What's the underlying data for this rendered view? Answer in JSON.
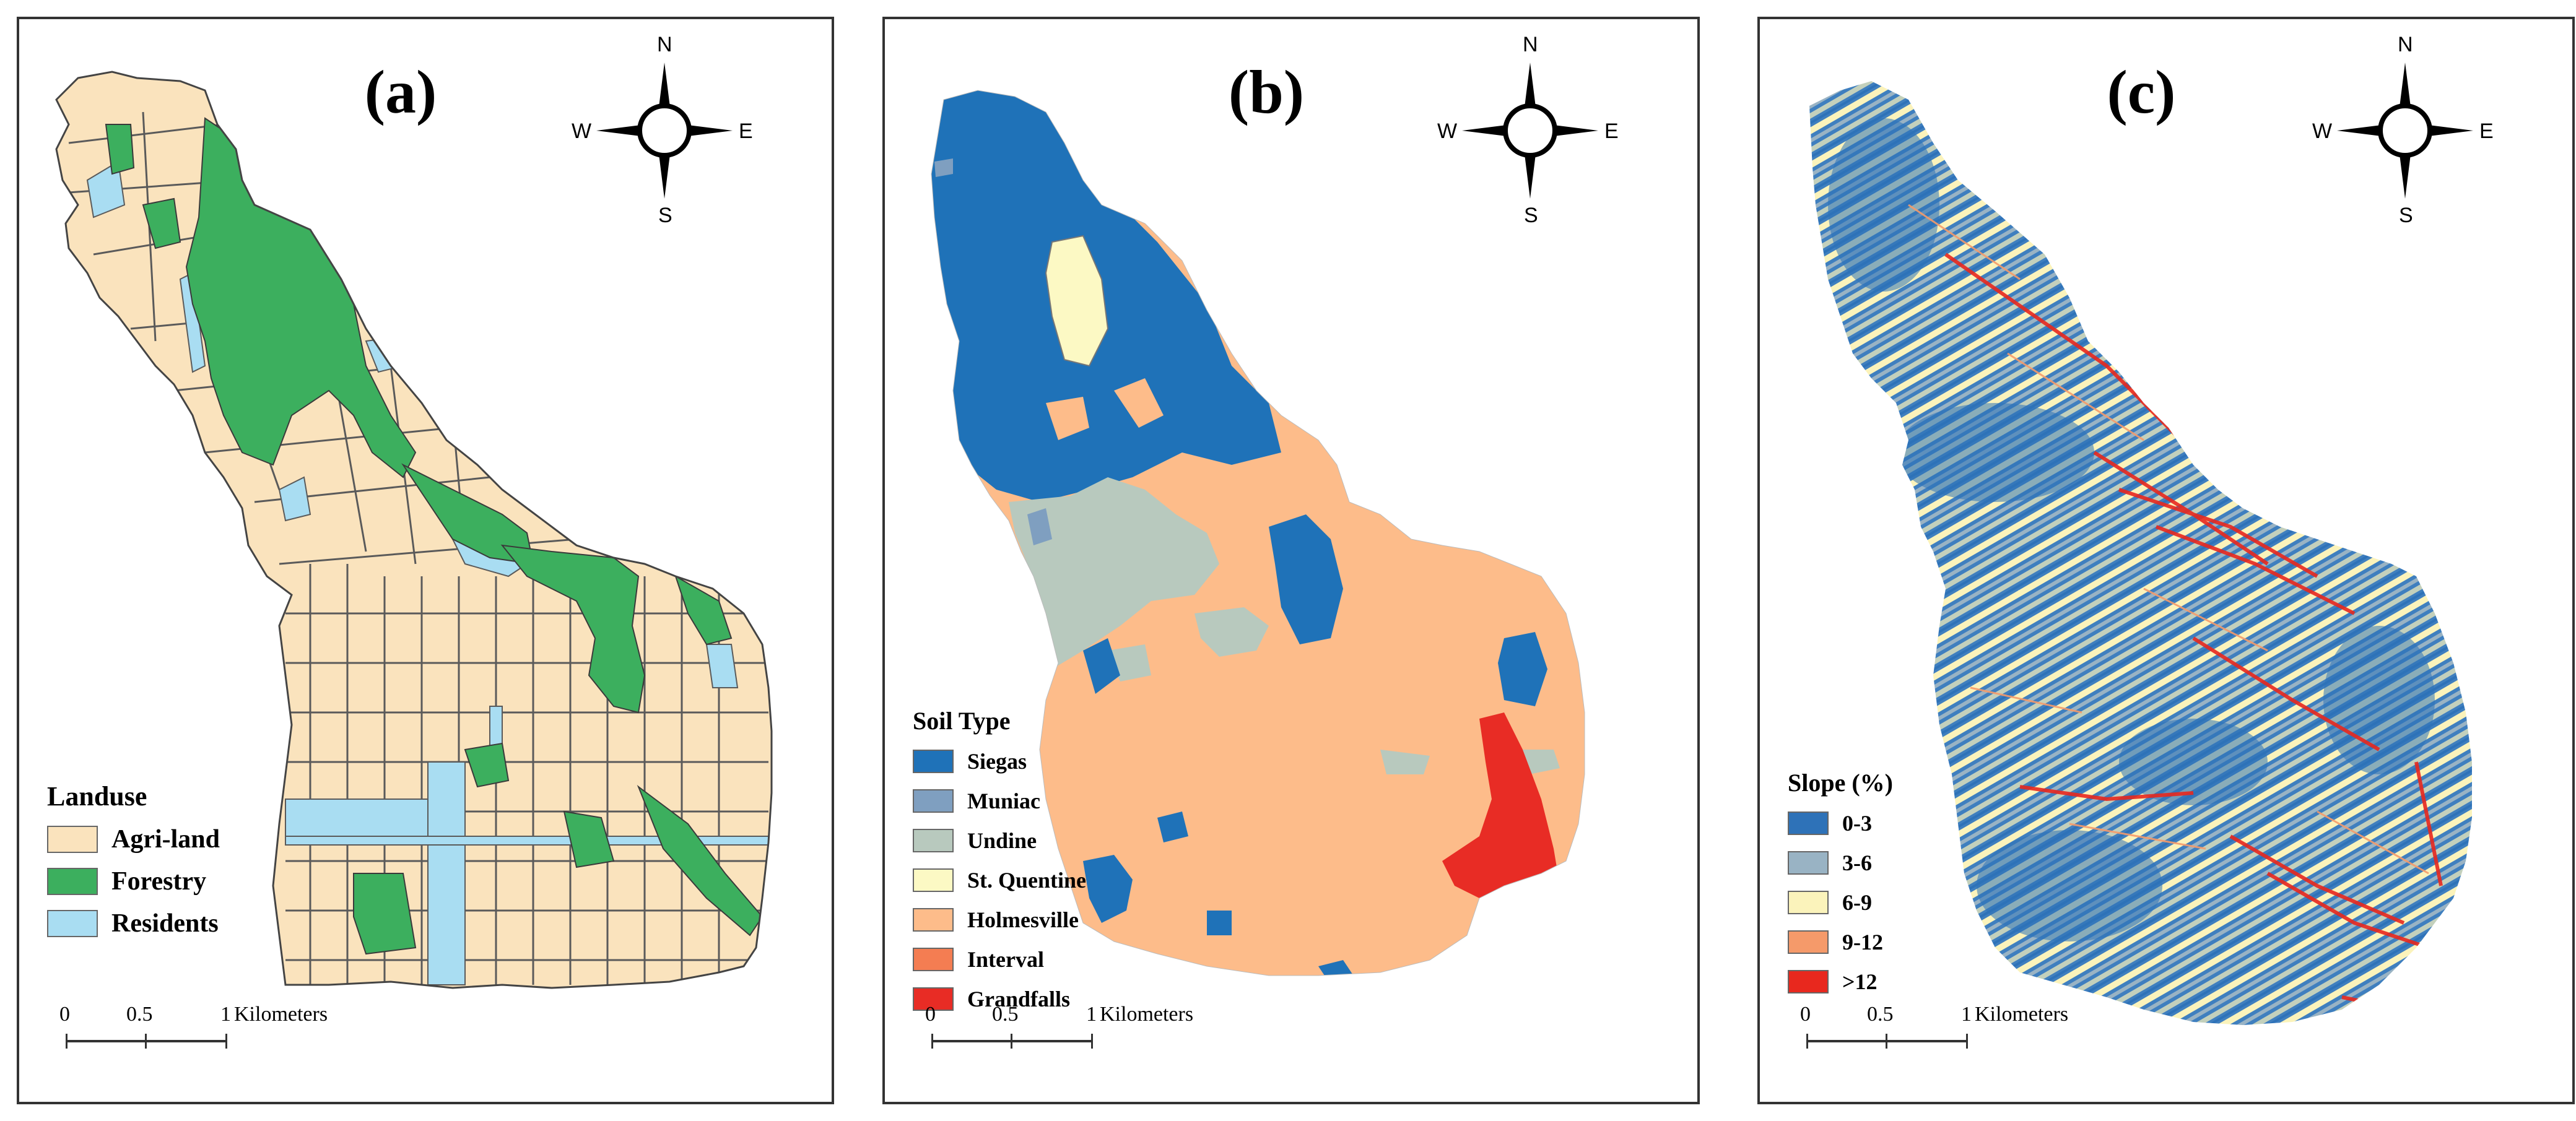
{
  "panels": {
    "a": {
      "label": "(a)",
      "legend_title": "Landuse",
      "legend": [
        {
          "label": "Agri-land",
          "color": "#fae3bd"
        },
        {
          "label": "Forestry",
          "color": "#3caf5e"
        },
        {
          "label": "Residents",
          "color": "#a9ddf2"
        }
      ]
    },
    "b": {
      "label": "(b)",
      "legend_title": "Soil Type",
      "legend": [
        {
          "label": "Siegas",
          "color": "#1f72b8"
        },
        {
          "label": "Muniac",
          "color": "#7f9fc0"
        },
        {
          "label": "Undine",
          "color": "#b8c9be"
        },
        {
          "label": "St. Quentine",
          "color": "#fcf9c4"
        },
        {
          "label": "Holmesville",
          "color": "#fdbc8a"
        },
        {
          "label": "Interval",
          "color": "#f47d52"
        },
        {
          "label": "Grandfalls",
          "color": "#e82c25"
        }
      ]
    },
    "c": {
      "label": "(c)",
      "legend_title": "Slope (%)",
      "legend": [
        {
          "label": "0-3",
          "color": "#2e72b8"
        },
        {
          "label": "3-6",
          "color": "#99b3c4"
        },
        {
          "label": "6-9",
          "color": "#fbf3bb"
        },
        {
          "label": "9-12",
          "color": "#f59a6a"
        },
        {
          "label": ">12",
          "color": "#e8281e"
        }
      ]
    }
  },
  "compass": {
    "n": "N",
    "s": "S",
    "e": "E",
    "w": "W"
  },
  "scalebar": {
    "ticks": [
      "0",
      "0.5",
      "1"
    ],
    "unit": "Kilometers"
  }
}
